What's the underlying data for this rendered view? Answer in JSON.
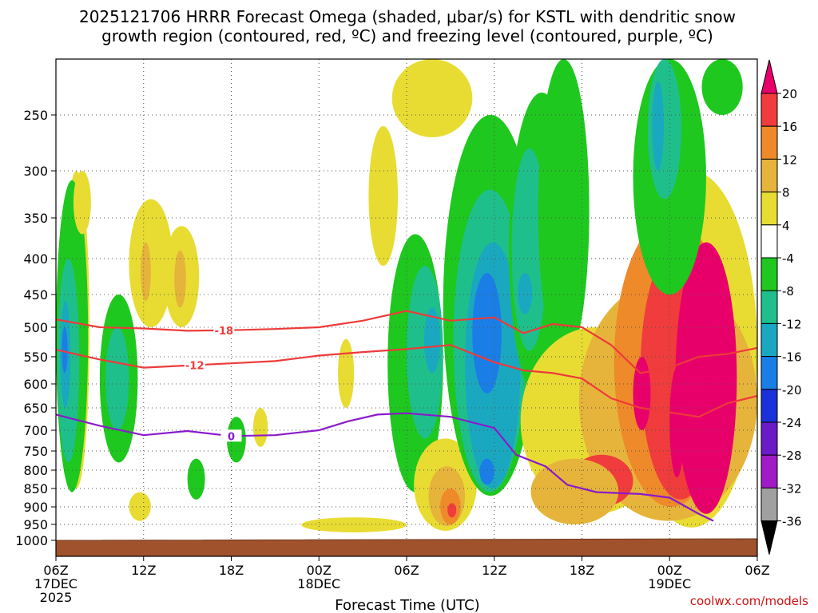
{
  "chart_data": {
    "type": "heatmap",
    "title_line1": "2025121706 HRRR Forecast Omega (shaded, μbar/s) for KSTL with dendritic snow",
    "title_line2": "growth region (contoured, red, ºC) and freezing level (contoured, purple, ºC)",
    "xlabel": "Forecast Time (UTC)",
    "ylabel": "",
    "x_range_hours": [
      0,
      48
    ],
    "y_range_hpa": [
      200,
      1025
    ],
    "x_ticks": [
      {
        "hour": 0,
        "label": "06Z",
        "sub1": "17DEC",
        "sub2": "2025"
      },
      {
        "hour": 6,
        "label": "12Z"
      },
      {
        "hour": 12,
        "label": "18Z"
      },
      {
        "hour": 18,
        "label": "00Z",
        "sub1": "18DEC"
      },
      {
        "hour": 24,
        "label": "06Z"
      },
      {
        "hour": 30,
        "label": "12Z"
      },
      {
        "hour": 36,
        "label": "18Z"
      },
      {
        "hour": 42,
        "label": "00Z",
        "sub1": "19DEC"
      },
      {
        "hour": 48,
        "label": "06Z"
      }
    ],
    "y_ticks": [
      {
        "hpa": 250,
        "label": "250"
      },
      {
        "hpa": 300,
        "label": "300"
      },
      {
        "hpa": 350,
        "label": "350"
      },
      {
        "hpa": 400,
        "label": "400"
      },
      {
        "hpa": 450,
        "label": "450"
      },
      {
        "hpa": 500,
        "label": "500"
      },
      {
        "hpa": 550,
        "label": "550"
      },
      {
        "hpa": 600,
        "label": "600"
      },
      {
        "hpa": 650,
        "label": "650"
      },
      {
        "hpa": 700,
        "label": "700"
      },
      {
        "hpa": 750,
        "label": "750"
      },
      {
        "hpa": 800,
        "label": "800"
      },
      {
        "hpa": 850,
        "label": "850"
      },
      {
        "hpa": 900,
        "label": "900"
      },
      {
        "hpa": 950,
        "label": "950"
      },
      {
        "hpa": 1000,
        "label": "1000"
      }
    ],
    "colorbar": {
      "levels": [
        20,
        16,
        12,
        8,
        4,
        -4,
        -8,
        -12,
        -16,
        -20,
        -24,
        -28,
        -32,
        -36
      ],
      "colors": [
        "#e8006a",
        "#f03c3c",
        "#ee8a2a",
        "#e6b43a",
        "#e8dc33",
        "#ffffff",
        "#1ec81e",
        "#1fbf8c",
        "#1aa8c0",
        "#1a7ee6",
        "#1a30d8",
        "#6a1ac6",
        "#a01ac6",
        "#a0a0a0",
        "#000000"
      ]
    },
    "shading_regions": [
      {
        "value": 6,
        "t0": 0.5,
        "t1": 2.3,
        "p0": 300,
        "p1": 850
      },
      {
        "value": 10,
        "t0": 1.2,
        "t1": 1.8,
        "p0": 380,
        "p1": 600
      },
      {
        "value": -8,
        "t0": 0.0,
        "t1": 2.2,
        "p0": 310,
        "p1": 860
      },
      {
        "value": -12,
        "t0": 0.1,
        "t1": 1.6,
        "p0": 400,
        "p1": 780
      },
      {
        "value": -16,
        "t0": 0.3,
        "t1": 1.0,
        "p0": 460,
        "p1": 650
      },
      {
        "value": -20,
        "t0": 0.4,
        "t1": 0.8,
        "p0": 500,
        "p1": 580
      },
      {
        "value": -8,
        "t0": 3.0,
        "t1": 5.6,
        "p0": 450,
        "p1": 780
      },
      {
        "value": -12,
        "t0": 3.4,
        "t1": 5.0,
        "p0": 500,
        "p1": 700
      },
      {
        "value": 6,
        "t0": 5.0,
        "t1": 8.0,
        "p0": 330,
        "p1": 500
      },
      {
        "value": 10,
        "t0": 5.8,
        "t1": 6.5,
        "p0": 380,
        "p1": 460
      },
      {
        "value": 6,
        "t0": 7.4,
        "t1": 9.8,
        "p0": 360,
        "p1": 500
      },
      {
        "value": 10,
        "t0": 8.1,
        "t1": 8.9,
        "p0": 390,
        "p1": 470
      },
      {
        "value": 6,
        "t0": 1.2,
        "t1": 2.4,
        "p0": 300,
        "p1": 370
      },
      {
        "value": 6,
        "t0": 5.0,
        "t1": 6.5,
        "p0": 860,
        "p1": 940
      },
      {
        "value": 6,
        "t0": 13.5,
        "t1": 14.5,
        "p0": 650,
        "p1": 740
      },
      {
        "value": 6,
        "t0": 19.3,
        "t1": 20.4,
        "p0": 520,
        "p1": 650
      },
      {
        "value": 6,
        "t0": 21.4,
        "t1": 23.4,
        "p0": 260,
        "p1": 410
      },
      {
        "value": -8,
        "t0": 11.7,
        "t1": 13.0,
        "p0": 670,
        "p1": 780
      },
      {
        "value": -8,
        "t0": 9.0,
        "t1": 10.2,
        "p0": 770,
        "p1": 880
      },
      {
        "value": -8,
        "t0": 22.7,
        "t1": 26.5,
        "p0": 370,
        "p1": 860
      },
      {
        "value": -12,
        "t0": 24.0,
        "t1": 26.5,
        "p0": 410,
        "p1": 720
      },
      {
        "value": -16,
        "t0": 25.2,
        "t1": 26.3,
        "p0": 470,
        "p1": 580
      },
      {
        "value": 6,
        "t0": 23.0,
        "t1": 28.5,
        "p0": 200,
        "p1": 270
      },
      {
        "value": 6,
        "t0": 24.5,
        "t1": 28.8,
        "p0": 720,
        "p1": 970
      },
      {
        "value": 10,
        "t0": 25.5,
        "t1": 28.0,
        "p0": 790,
        "p1": 955
      },
      {
        "value": 14,
        "t0": 26.3,
        "t1": 27.7,
        "p0": 850,
        "p1": 950
      },
      {
        "value": 18,
        "t0": 26.8,
        "t1": 27.4,
        "p0": 890,
        "p1": 930
      },
      {
        "value": -8,
        "t0": 26.5,
        "t1": 33.0,
        "p0": 250,
        "p1": 870
      },
      {
        "value": -12,
        "t0": 27.2,
        "t1": 32.2,
        "p0": 320,
        "p1": 860
      },
      {
        "value": -16,
        "t0": 28.0,
        "t1": 31.8,
        "p0": 380,
        "p1": 850
      },
      {
        "value": -20,
        "t0": 28.5,
        "t1": 30.5,
        "p0": 420,
        "p1": 620
      },
      {
        "value": -20,
        "t0": 29.0,
        "t1": 30.0,
        "p0": 770,
        "p1": 840
      },
      {
        "value": -8,
        "t0": 31.0,
        "t1": 35.5,
        "p0": 230,
        "p1": 640
      },
      {
        "value": -12,
        "t0": 31.2,
        "t1": 33.6,
        "p0": 280,
        "p1": 540
      },
      {
        "value": -16,
        "t0": 31.6,
        "t1": 32.6,
        "p0": 420,
        "p1": 480
      },
      {
        "value": -8,
        "t0": 33.0,
        "t1": 36.5,
        "p0": 200,
        "p1": 560
      },
      {
        "value": 6,
        "t0": 31.8,
        "t1": 42.0,
        "p0": 500,
        "p1": 920
      },
      {
        "value": 6,
        "t0": 39.0,
        "t1": 48.0,
        "p0": 300,
        "p1": 960
      },
      {
        "value": 10,
        "t0": 35.8,
        "t1": 48.0,
        "p0": 430,
        "p1": 940
      },
      {
        "value": 14,
        "t0": 38.2,
        "t1": 46.0,
        "p0": 350,
        "p1": 900
      },
      {
        "value": 18,
        "t0": 40.0,
        "t1": 45.5,
        "p0": 380,
        "p1": 880
      },
      {
        "value": 22,
        "t0": 42.4,
        "t1": 46.6,
        "p0": 380,
        "p1": 920
      },
      {
        "value": 22,
        "t0": 39.5,
        "t1": 40.7,
        "p0": 550,
        "p1": 700
      },
      {
        "value": 22,
        "t0": 42.0,
        "t1": 43.0,
        "p0": 570,
        "p1": 820
      },
      {
        "value": 22,
        "t0": 37.0,
        "t1": 38.8,
        "p0": 780,
        "p1": 890
      },
      {
        "value": 18,
        "t0": 35.2,
        "t1": 39.5,
        "p0": 760,
        "p1": 900
      },
      {
        "value": 10,
        "t0": 32.5,
        "t1": 38.5,
        "p0": 770,
        "p1": 950
      },
      {
        "value": -8,
        "t0": 39.5,
        "t1": 44.5,
        "p0": 200,
        "p1": 450
      },
      {
        "value": -12,
        "t0": 40.5,
        "t1": 42.8,
        "p0": 200,
        "p1": 330
      },
      {
        "value": -16,
        "t0": 40.8,
        "t1": 41.6,
        "p0": 220,
        "p1": 300
      },
      {
        "value": -8,
        "t0": 44.2,
        "t1": 47.0,
        "p0": 200,
        "p1": 250
      },
      {
        "value": 6,
        "t0": 16.8,
        "t1": 24.0,
        "p0": 930,
        "p1": 975
      }
    ],
    "dgz_contours": [
      {
        "label": "-18",
        "label_at_hour": 11.5,
        "points": [
          [
            0,
            488
          ],
          [
            3,
            500
          ],
          [
            6,
            502
          ],
          [
            9,
            506
          ],
          [
            12,
            505
          ],
          [
            15,
            503
          ],
          [
            18,
            500
          ],
          [
            21,
            490
          ],
          [
            24,
            475
          ],
          [
            27,
            490
          ],
          [
            30,
            485
          ],
          [
            32,
            510
          ],
          [
            34,
            495
          ],
          [
            36,
            500
          ],
          [
            38,
            530
          ],
          [
            40,
            580
          ],
          [
            42,
            570
          ],
          [
            44,
            550
          ],
          [
            46,
            545
          ],
          [
            48,
            535
          ]
        ]
      },
      {
        "label": "-12",
        "label_at_hour": 9.5,
        "points": [
          [
            0,
            538
          ],
          [
            3,
            555
          ],
          [
            6,
            570
          ],
          [
            9,
            566
          ],
          [
            12,
            562
          ],
          [
            15,
            558
          ],
          [
            18,
            548
          ],
          [
            21,
            542
          ],
          [
            24,
            537
          ],
          [
            27,
            530
          ],
          [
            30,
            560
          ],
          [
            32,
            575
          ],
          [
            34,
            580
          ],
          [
            36,
            590
          ],
          [
            38,
            630
          ],
          [
            40,
            650
          ],
          [
            42,
            660
          ],
          [
            44,
            670
          ],
          [
            46,
            640
          ],
          [
            48,
            625
          ]
        ]
      }
    ],
    "freezing_contour": {
      "label": "0",
      "label_at_hour": 12,
      "points": [
        [
          0,
          665
        ],
        [
          3,
          690
        ],
        [
          6,
          712
        ],
        [
          9,
          702
        ],
        [
          12,
          714
        ],
        [
          15,
          712
        ],
        [
          18,
          700
        ],
        [
          20,
          680
        ],
        [
          22,
          665
        ],
        [
          24,
          662
        ],
        [
          27,
          670
        ],
        [
          30,
          695
        ],
        [
          31.5,
          760
        ],
        [
          33.5,
          790
        ],
        [
          35,
          840
        ],
        [
          37,
          860
        ],
        [
          40,
          865
        ],
        [
          42,
          875
        ],
        [
          44,
          920
        ],
        [
          45,
          940
        ]
      ]
    },
    "ground_hpa": 1000,
    "credit": "coolwx.com/models"
  }
}
